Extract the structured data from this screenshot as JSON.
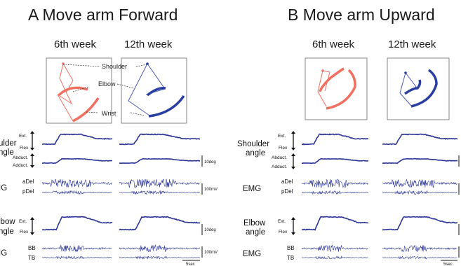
{
  "panels": [
    {
      "title": "A Move arm Forward"
    },
    {
      "title": "B Move arm Upward"
    }
  ],
  "weeks": [
    "6th week",
    "12th week"
  ],
  "joints": {
    "shoulder": "Shoulder",
    "elbow": "Elbow",
    "wrist": "Wrist"
  },
  "rows": {
    "shoulder_angle": "Shoulder\nangle",
    "emg": "EMG",
    "elbow_angle": "Elbow\nangle"
  },
  "shoulder_row_label_a_visible": [
    "ulder",
    "ngle"
  ],
  "shoulder_row_label_b": [
    "Shoulder",
    "angle"
  ],
  "elbow_row_label_a_visible": [
    "lbow",
    "ngle"
  ],
  "elbow_row_label_b": [
    "Elbow",
    "angle"
  ],
  "emg_label_a_visible": "IG",
  "channel_labels": {
    "ext": "Ext.",
    "flex": "Flex",
    "abduct": "Abduct.",
    "adduct": "Adduct.",
    "adel": "aDel",
    "pdel": "pDel",
    "bb": "BB",
    "tb": "TB"
  },
  "scales": {
    "deg": "10deg",
    "mv": "100mV",
    "sec": "5sec"
  },
  "colors": {
    "forward_traj": "#f07060",
    "upward_traj": "#2a3fa0",
    "trace": "#2b3594"
  }
}
